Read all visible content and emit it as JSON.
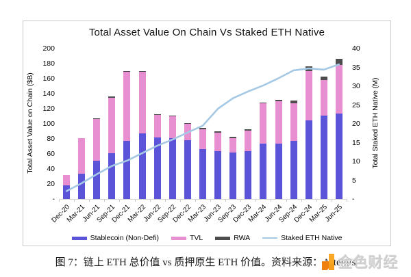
{
  "chart_data": {
    "type": "bar",
    "subtype": "stacked-bars-with-line",
    "title": "Total Asset Value On Chain Vs Staked ETH Native",
    "categories": [
      "Dec-20",
      "Mar-21",
      "Jun-21",
      "Sep-21",
      "Dec-21",
      "Mar-22",
      "Jun-22",
      "Sep-22",
      "Dec-22",
      "Mar-23",
      "Jun-23",
      "Sep-23",
      "Dec-23",
      "Mar-24",
      "Jun-24",
      "Sep-24",
      "Dec-24",
      "Mar-25",
      "Jun-25"
    ],
    "series": [
      {
        "name": "Stablecoin (Non-Defi)",
        "type": "bar",
        "axis": "left",
        "color": "#5b53d8",
        "values": [
          18,
          34,
          51,
          61,
          77,
          87,
          82,
          81,
          78,
          66,
          64,
          62,
          64,
          74,
          74,
          77,
          105,
          111,
          114
        ]
      },
      {
        "name": "TVL",
        "type": "bar",
        "axis": "left",
        "color": "#e78fd0",
        "values": [
          14,
          47,
          55.5,
          74,
          92,
          82,
          30,
          29,
          22.5,
          26.5,
          24,
          19,
          27,
          53,
          56,
          50,
          65,
          47,
          64
        ]
      },
      {
        "name": "RWA",
        "type": "bar",
        "axis": "left",
        "color": "#4d4d4d",
        "values": [
          0,
          0,
          0.5,
          1,
          1,
          1,
          1,
          1,
          0.5,
          2.5,
          2,
          2,
          2,
          1,
          2,
          4,
          6,
          5,
          8
        ]
      },
      {
        "name": "Staked ETH Native",
        "type": "line",
        "axis": "right",
        "color": "#a5c8e4",
        "values": [
          2.1,
          4.2,
          6.6,
          8.8,
          10.2,
          12.2,
          14.2,
          15.8,
          17.7,
          19.5,
          24,
          26.8,
          28.6,
          30.2,
          32.1,
          34.2,
          34.7,
          34.4,
          35.8
        ]
      }
    ],
    "left_axis": {
      "label": "Total Asset Value on Chain ($B)",
      "min": 0,
      "max": 200,
      "step": 20,
      "ticks": [
        "200",
        "180",
        "160",
        "140",
        "120",
        "100",
        "80",
        "60",
        "40",
        "20",
        "-"
      ]
    },
    "right_axis": {
      "label": "Total Staked ETH Native (M)",
      "min": 0,
      "max": 40,
      "step": 5,
      "ticks": [
        "40",
        "35",
        "30",
        "25",
        "20",
        "15",
        "10",
        "5",
        "-"
      ]
    },
    "grid": false,
    "legend_position": "bottom"
  },
  "caption": {
    "text": "图 7：链上 ETH 总价值 vs 质押原生 ETH 价值。资料来源：Artemis"
  },
  "watermark": {
    "text": "金色财经",
    "logo": "golden-finance-logo",
    "logo_color": "#f59e1b"
  }
}
